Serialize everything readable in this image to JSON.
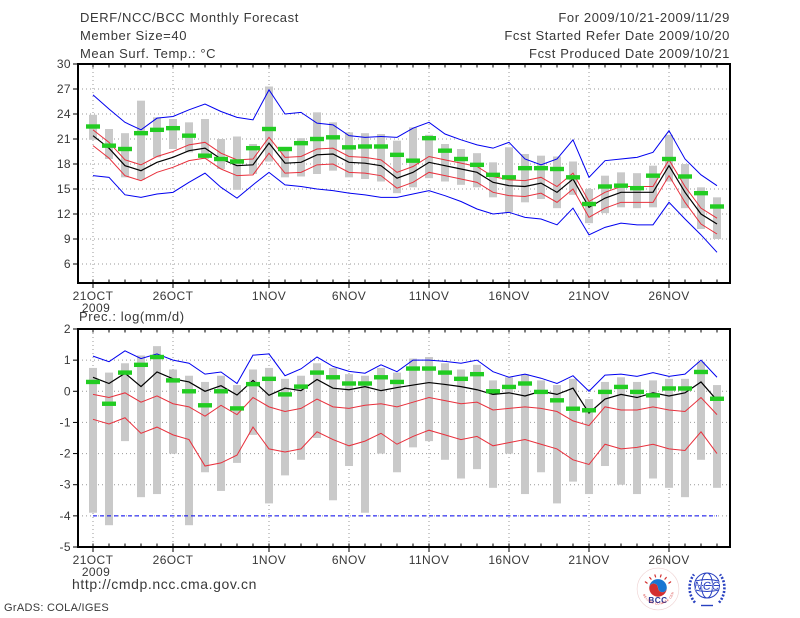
{
  "header": {
    "title": "DERF/NCC/BCC Monthly Forecast",
    "member_size": "Member Size=40",
    "for_range": "For 2009/10/21-2009/11/29",
    "fcst_started": "Fcst Started Refer Date 2009/10/20",
    "fcst_produced": "Fcst Produced Date 2009/10/21"
  },
  "footer": {
    "url": "http://cmdp.ncc.cma.gov.cn",
    "grads_credit": "GrADS: COLA/IGES",
    "logos": [
      {
        "name": "bcc-logo",
        "label": "BCC",
        "subtext": "BEIJING CLIMATE CENTER"
      },
      {
        "name": "ncc-logo",
        "label": "NCC"
      }
    ]
  },
  "colors": {
    "frame": "#000000",
    "grid": "#999999",
    "bar": "#c9c9c9",
    "text": "#383838",
    "blue": "#0000f0",
    "red": "#e8303c",
    "green": "#22cc22",
    "black": "#000000",
    "logo_blue": "#2840c0",
    "logo_red": "#d32f2f",
    "logo_navy": "#283593"
  },
  "chart_data": [
    {
      "type": "line",
      "title": "Mean Surf. Temp.: °C",
      "ylim": [
        6,
        30
      ],
      "yticks": [
        6,
        9,
        12,
        15,
        18,
        21,
        24,
        27,
        30
      ],
      "grid": "dotted",
      "xticks": [
        {
          "label": "21OCT",
          "day": 0,
          "sub": "2009"
        },
        {
          "label": "26OCT",
          "day": 5
        },
        {
          "label": "1NOV",
          "day": 11
        },
        {
          "label": "6NOV",
          "day": 16
        },
        {
          "label": "11NOV",
          "day": 21
        },
        {
          "label": "16NOV",
          "day": 26
        },
        {
          "label": "21NOV",
          "day": 31
        },
        {
          "label": "26NOV",
          "day": 36
        }
      ],
      "bars": {
        "low": [
          20.9,
          18.6,
          16.4,
          16.1,
          18.8,
          19.8,
          19.4,
          18.6,
          17.4,
          14.9,
          16.8,
          18.3,
          16.4,
          16.5,
          16.8,
          17.2,
          16.4,
          16.2,
          15.9,
          14.5,
          15.2,
          16.3,
          15.9,
          15.5,
          15.2,
          14.0,
          12.2,
          13.4,
          13.8,
          12.7,
          14.3,
          10.9,
          12.1,
          12.8,
          12.7,
          12.8,
          15.9,
          12.7,
          10.2,
          9.0
        ],
        "high": [
          23.9,
          22.2,
          21.7,
          25.6,
          23.6,
          23.4,
          23.0,
          23.4,
          21.0,
          21.3,
          20.4,
          27.3,
          20.0,
          21.1,
          24.2,
          23.0,
          21.8,
          21.7,
          21.6,
          20.8,
          22.4,
          21.5,
          20.4,
          19.8,
          19.3,
          18.2,
          20.0,
          19.2,
          19.0,
          18.9,
          18.3,
          15.0,
          16.6,
          17.0,
          16.9,
          17.8,
          21.5,
          18.0,
          15.2,
          14.0
        ]
      },
      "series": [
        {
          "name": "member-max",
          "style": "line",
          "color": "#0000f0",
          "width": 1,
          "values": [
            26.3,
            24.6,
            23.0,
            22.1,
            23.5,
            23.7,
            24.5,
            25.2,
            24.3,
            23.6,
            23.3,
            26.9,
            24.0,
            24.2,
            22.9,
            22.7,
            21.4,
            21.2,
            21.3,
            21.2,
            22.3,
            23.0,
            21.6,
            20.9,
            20.3,
            19.9,
            20.6,
            18.6,
            17.9,
            18.6,
            20.9,
            16.4,
            18.4,
            18.6,
            18.8,
            19.4,
            22.0,
            18.6,
            16.7,
            15.4
          ]
        },
        {
          "name": "upper-quartile",
          "style": "line",
          "color": "#e8303c",
          "width": 1,
          "values": [
            22.1,
            20.6,
            18.5,
            17.9,
            18.9,
            19.5,
            20.3,
            20.6,
            19.3,
            18.5,
            18.6,
            21.2,
            18.8,
            18.9,
            19.8,
            19.9,
            18.9,
            18.8,
            18.5,
            17.0,
            17.7,
            18.9,
            18.5,
            18.1,
            17.7,
            16.5,
            16.1,
            16.0,
            16.4,
            15.3,
            16.9,
            13.5,
            14.6,
            15.3,
            15.3,
            15.3,
            18.5,
            15.3,
            12.7,
            11.5
          ]
        },
        {
          "name": "lower-quartile",
          "style": "line",
          "color": "#e8303c",
          "width": 1,
          "values": [
            20.2,
            18.7,
            16.6,
            16.0,
            17.0,
            17.6,
            18.4,
            18.7,
            17.4,
            16.6,
            16.7,
            19.3,
            16.9,
            17.0,
            17.9,
            18.0,
            17.0,
            16.9,
            16.6,
            15.1,
            15.8,
            17.0,
            16.6,
            16.2,
            15.8,
            14.6,
            14.2,
            14.1,
            14.5,
            13.4,
            15.0,
            11.6,
            12.7,
            13.4,
            13.4,
            13.4,
            16.6,
            13.4,
            10.8,
            9.6
          ]
        },
        {
          "name": "member-min",
          "style": "line",
          "color": "#0000f0",
          "width": 1,
          "values": [
            16.6,
            16.4,
            14.3,
            14.0,
            14.4,
            14.6,
            15.8,
            16.9,
            15.2,
            13.9,
            15.5,
            17.0,
            15.5,
            15.3,
            15.0,
            14.8,
            14.5,
            14.3,
            14.0,
            14.0,
            14.4,
            14.8,
            14.2,
            13.5,
            12.6,
            12.0,
            12.2,
            11.6,
            11.4,
            10.7,
            12.7,
            9.5,
            10.4,
            10.9,
            10.7,
            10.7,
            13.4,
            11.4,
            9.5,
            7.4
          ]
        },
        {
          "name": "ensemble-mean",
          "style": "line",
          "color": "#000000",
          "width": 1.2,
          "values": [
            21.4,
            19.9,
            17.8,
            17.2,
            18.2,
            18.8,
            19.6,
            19.9,
            18.6,
            17.8,
            17.9,
            20.5,
            18.1,
            18.2,
            19.1,
            19.2,
            18.2,
            18.1,
            17.8,
            16.3,
            17.0,
            18.2,
            17.8,
            17.4,
            17.0,
            15.8,
            15.4,
            15.3,
            15.7,
            14.6,
            16.2,
            12.8,
            13.9,
            14.6,
            14.6,
            14.6,
            17.8,
            14.6,
            12.0,
            10.8
          ]
        },
        {
          "name": "reference",
          "style": "dash-markers",
          "color": "#22cc22",
          "values": [
            22.5,
            20.2,
            19.8,
            21.7,
            22.1,
            22.3,
            21.4,
            19.0,
            18.6,
            18.3,
            19.9,
            22.2,
            19.8,
            20.5,
            21.0,
            21.2,
            20.0,
            20.1,
            20.1,
            19.1,
            18.4,
            21.1,
            19.6,
            18.6,
            17.9,
            16.7,
            16.4,
            17.5,
            17.5,
            17.4,
            16.4,
            13.2,
            15.3,
            15.4,
            15.1,
            16.6,
            18.6,
            16.5,
            14.5,
            12.9
          ]
        }
      ]
    },
    {
      "type": "line",
      "title": "Prec.: log(mm/d)",
      "ylim": [
        -5,
        2
      ],
      "yticks": [
        -5,
        -4,
        -3,
        -2,
        -1,
        0,
        1,
        2
      ],
      "grid": "dotted",
      "xticks": [
        {
          "label": "21OCT",
          "day": 0,
          "sub": "2009"
        },
        {
          "label": "26OCT",
          "day": 5
        },
        {
          "label": "1NOV",
          "day": 11
        },
        {
          "label": "6NOV",
          "day": 16
        },
        {
          "label": "11NOV",
          "day": 21
        },
        {
          "label": "16NOV",
          "day": 26
        },
        {
          "label": "21NOV",
          "day": 31
        },
        {
          "label": "26NOV",
          "day": 36
        }
      ],
      "bars": {
        "low": [
          -3.9,
          -4.3,
          -1.6,
          -3.4,
          -3.3,
          -2.0,
          -4.3,
          -2.6,
          -3.2,
          -2.3,
          -1.4,
          -3.6,
          -2.7,
          -2.2,
          -1.5,
          -3.5,
          -2.4,
          -3.9,
          -2.0,
          -2.6,
          -1.8,
          -1.6,
          -2.2,
          -2.8,
          -2.5,
          -3.1,
          -2.0,
          -3.3,
          -2.6,
          -3.6,
          -2.9,
          -3.3,
          -2.4,
          -3.0,
          -3.3,
          -2.8,
          -3.1,
          -3.4,
          -2.2,
          -3.1
        ],
        "high": [
          0.75,
          0.6,
          0.9,
          1.15,
          1.45,
          0.7,
          0.5,
          0.3,
          0.5,
          0.2,
          0.7,
          0.75,
          0.4,
          0.5,
          0.9,
          0.75,
          0.55,
          0.5,
          0.75,
          0.6,
          1.05,
          1.1,
          0.9,
          0.7,
          0.85,
          0.35,
          0.45,
          0.55,
          0.35,
          0.2,
          0.4,
          -0.25,
          0.3,
          0.45,
          0.3,
          0.35,
          0.4,
          0.4,
          0.95,
          0.2
        ]
      },
      "series": [
        {
          "name": "member-max",
          "style": "line",
          "color": "#0000f0",
          "width": 1,
          "values": [
            1.13,
            0.95,
            1.3,
            1.05,
            1.2,
            1.0,
            0.9,
            0.55,
            0.62,
            0.25,
            1.16,
            1.2,
            0.5,
            0.72,
            1.1,
            0.8,
            0.64,
            0.58,
            0.85,
            0.63,
            1.0,
            1.0,
            0.96,
            0.9,
            1.0,
            0.63,
            0.45,
            0.55,
            0.42,
            0.25,
            0.5,
            0.0,
            0.52,
            0.55,
            0.48,
            0.6,
            0.48,
            0.55,
            1.0,
            0.45
          ]
        },
        {
          "name": "upper-quartile",
          "style": "line",
          "color": "#e8303c",
          "width": 1,
          "values": [
            -0.1,
            -0.2,
            -0.05,
            -0.35,
            -0.15,
            -0.4,
            -0.5,
            -0.8,
            -0.45,
            -0.75,
            -0.2,
            -0.5,
            -0.65,
            -0.55,
            -0.25,
            -0.5,
            -0.55,
            -0.45,
            -0.4,
            -0.5,
            -0.35,
            -0.2,
            -0.3,
            -0.4,
            -0.35,
            -0.6,
            -0.55,
            -0.5,
            -0.55,
            -0.65,
            -0.95,
            -1.1,
            -0.5,
            -0.6,
            -0.6,
            -0.5,
            -0.6,
            -0.65,
            -0.2,
            -0.75
          ]
        },
        {
          "name": "lower-quartile",
          "style": "line",
          "color": "#e8303c",
          "width": 1,
          "values": [
            -0.9,
            -1.05,
            -0.85,
            -1.35,
            -1.15,
            -1.4,
            -1.55,
            -2.4,
            -2.3,
            -2.05,
            -1.15,
            -1.85,
            -1.95,
            -1.85,
            -1.3,
            -1.55,
            -1.75,
            -1.6,
            -1.35,
            -1.7,
            -1.45,
            -1.25,
            -1.4,
            -1.55,
            -1.45,
            -1.75,
            -1.65,
            -1.55,
            -1.7,
            -1.85,
            -2.2,
            -2.35,
            -1.7,
            -1.85,
            -1.8,
            -1.7,
            -1.85,
            -1.9,
            -1.3,
            -2.0
          ]
        },
        {
          "name": "member-min",
          "style": "line",
          "color": "#0000f0",
          "width": 1,
          "dash": "4 3",
          "values": [
            -4,
            -4,
            -4,
            -4,
            -4,
            -4,
            -4,
            -4,
            -4,
            -4,
            -4,
            -4,
            -4,
            -4,
            -4,
            -4,
            -4,
            -4,
            -4,
            -4,
            -4,
            -4,
            -4,
            -4,
            -4,
            -4,
            -4,
            -4,
            -4,
            -4,
            -4,
            -4,
            -4,
            -4,
            -4,
            -4,
            -4,
            -4,
            -4,
            -4
          ]
        },
        {
          "name": "ensemble-mean",
          "style": "line",
          "color": "#000000",
          "width": 1.2,
          "values": [
            0.45,
            0.25,
            0.58,
            0.15,
            0.62,
            0.4,
            0.3,
            0.0,
            0.18,
            -0.12,
            0.35,
            -0.13,
            0.1,
            0.02,
            0.38,
            0.1,
            0.05,
            0.15,
            0.02,
            0.12,
            0.2,
            0.28,
            0.22,
            0.15,
            0.05,
            -0.1,
            -0.05,
            -0.15,
            0.0,
            -0.1,
            0.1,
            -0.7,
            -0.25,
            -0.1,
            -0.2,
            -0.05,
            -0.15,
            -0.05,
            0.3,
            -0.29
          ]
        },
        {
          "name": "reference",
          "style": "dash-markers",
          "color": "#22cc22",
          "values": [
            0.3,
            -0.4,
            0.6,
            0.85,
            1.1,
            0.35,
            0.0,
            -0.45,
            0.0,
            -0.55,
            0.23,
            0.4,
            -0.1,
            0.15,
            0.6,
            0.45,
            0.25,
            0.25,
            0.45,
            0.3,
            0.73,
            0.73,
            0.6,
            0.4,
            0.55,
            0.0,
            0.14,
            0.25,
            -0.02,
            -0.29,
            -0.56,
            -0.61,
            -0.02,
            0.14,
            -0.02,
            -0.13,
            0.09,
            0.09,
            0.62,
            -0.24
          ]
        }
      ]
    }
  ]
}
